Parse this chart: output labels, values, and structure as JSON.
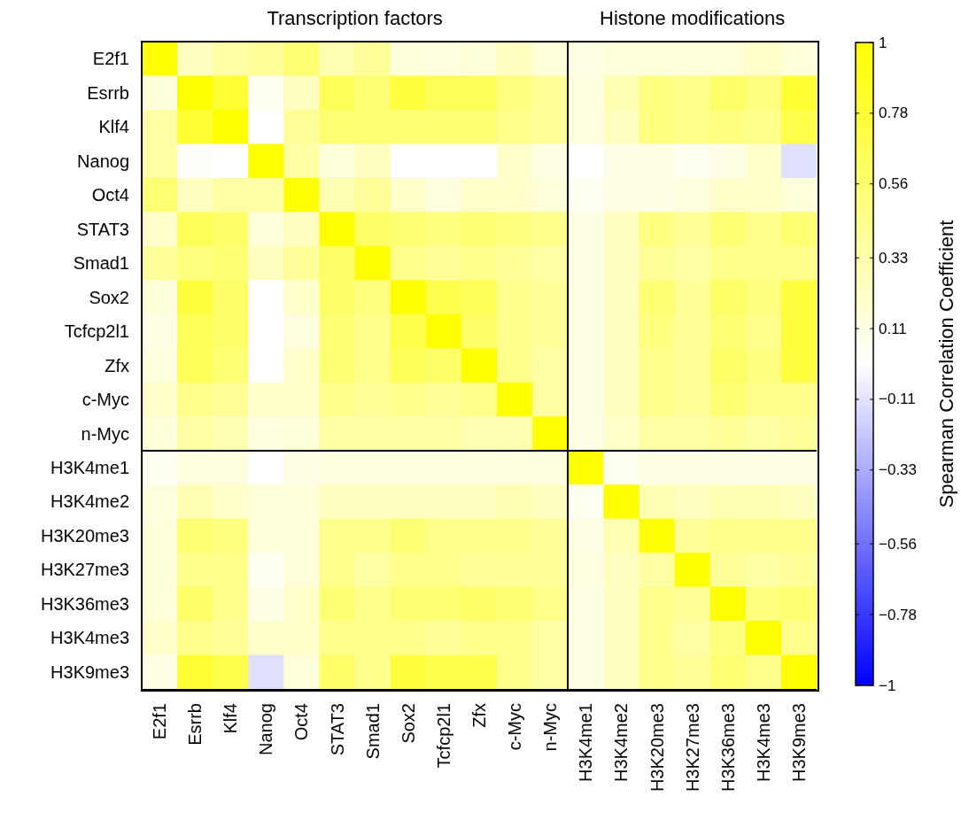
{
  "chart_data": {
    "type": "heatmap",
    "clabel": "Spearman Correlation Coefficient",
    "annotations": [
      "Transcription factors",
      "Histone modifications"
    ],
    "categories": [
      "E2f1",
      "Esrrb",
      "Klf4",
      "Nanog",
      "Oct4",
      "STAT3",
      "Smad1",
      "Sox2",
      "Tcfcp2l1",
      "Zfx",
      "c-Myc",
      "n-Myc",
      "H3K4me1",
      "H3K4me2",
      "H3K20me3",
      "H3K27me3",
      "H3K36me3",
      "H3K4me3",
      "H3K9me3"
    ],
    "y_categories": [
      "E2f1",
      "Esrrb",
      "Klf4",
      "Nanog",
      "Oct4",
      "STAT3",
      "Smad1",
      "Sox2",
      "Tcfcp2l1",
      "Zfx",
      "c-Myc",
      "n-Myc",
      "H3K4me1",
      "H3K4me2",
      "H3K20me3",
      "H3K27me3",
      "H3K36me3",
      "H3K4me3",
      "H3K9me3"
    ],
    "cells": [
      [
        1,
        0.25,
        0.35,
        0.4,
        0.55,
        0.3,
        0.4,
        0.15,
        0.12,
        0.15,
        0.25,
        0.15,
        0.1,
        0.15,
        0.15,
        0.15,
        0.15,
        0.2,
        0.15
      ],
      [
        0.15,
        1,
        0.8,
        0.05,
        0.25,
        0.65,
        0.55,
        0.75,
        0.65,
        0.65,
        0.5,
        0.4,
        0.12,
        0.3,
        0.5,
        0.45,
        0.6,
        0.5,
        0.8
      ],
      [
        0.35,
        0.8,
        1,
        0,
        0.4,
        0.55,
        0.55,
        0.55,
        0.55,
        0.55,
        0.45,
        0.4,
        0.12,
        0.25,
        0.5,
        0.45,
        0.5,
        0.45,
        0.7
      ],
      [
        0.35,
        0.02,
        0,
        1,
        0.35,
        0.15,
        0.25,
        0,
        0,
        0,
        0.2,
        0.1,
        0,
        0.1,
        0.1,
        0.05,
        0.1,
        0.2,
        -0.12
      ],
      [
        0.55,
        0.25,
        0.35,
        0.35,
        1,
        0.3,
        0.4,
        0.2,
        0.12,
        0.2,
        0.2,
        0.15,
        0.05,
        0.1,
        0.1,
        0.12,
        0.2,
        0.2,
        0.15
      ],
      [
        0.2,
        0.65,
        0.6,
        0.15,
        0.25,
        1,
        0.6,
        0.55,
        0.5,
        0.55,
        0.5,
        0.45,
        0.1,
        0.25,
        0.5,
        0.4,
        0.55,
        0.45,
        0.55
      ],
      [
        0.4,
        0.5,
        0.55,
        0.25,
        0.4,
        0.6,
        1,
        0.45,
        0.4,
        0.45,
        0.4,
        0.35,
        0.1,
        0.25,
        0.4,
        0.35,
        0.45,
        0.45,
        0.45
      ],
      [
        0.15,
        0.75,
        0.6,
        0,
        0.2,
        0.6,
        0.5,
        1,
        0.7,
        0.65,
        0.45,
        0.4,
        0.1,
        0.25,
        0.55,
        0.4,
        0.6,
        0.5,
        0.75
      ],
      [
        0.1,
        0.65,
        0.6,
        0,
        0.12,
        0.55,
        0.45,
        0.7,
        1,
        0.6,
        0.45,
        0.4,
        0.1,
        0.25,
        0.5,
        0.4,
        0.55,
        0.45,
        0.75
      ],
      [
        0.12,
        0.65,
        0.55,
        0,
        0.2,
        0.55,
        0.45,
        0.65,
        0.6,
        1,
        0.45,
        0.35,
        0.1,
        0.25,
        0.45,
        0.4,
        0.6,
        0.5,
        0.75
      ],
      [
        0.2,
        0.45,
        0.4,
        0.2,
        0.2,
        0.45,
        0.4,
        0.45,
        0.4,
        0.45,
        1,
        0.35,
        0.1,
        0.25,
        0.45,
        0.4,
        0.55,
        0.45,
        0.45
      ],
      [
        0.15,
        0.35,
        0.3,
        0.12,
        0.15,
        0.35,
        0.35,
        0.35,
        0.35,
        0.3,
        0.3,
        1,
        0.1,
        0.2,
        0.35,
        0.35,
        0.4,
        0.35,
        0.4
      ],
      [
        0.05,
        0.12,
        0.12,
        0,
        0.1,
        0.12,
        0.12,
        0.12,
        0.12,
        0.12,
        0.12,
        0.12,
        1,
        0.05,
        0.1,
        0.1,
        0.1,
        0.1,
        0.1
      ],
      [
        0.12,
        0.3,
        0.2,
        0.15,
        0.15,
        0.25,
        0.25,
        0.25,
        0.25,
        0.25,
        0.3,
        0.25,
        0.05,
        1,
        0.3,
        0.25,
        0.3,
        0.3,
        0.25
      ],
      [
        0.15,
        0.55,
        0.5,
        0.15,
        0.15,
        0.45,
        0.45,
        0.55,
        0.45,
        0.45,
        0.45,
        0.4,
        0.1,
        0.3,
        1,
        0.4,
        0.45,
        0.45,
        0.45
      ],
      [
        0.15,
        0.45,
        0.45,
        0.05,
        0.15,
        0.45,
        0.35,
        0.45,
        0.45,
        0.4,
        0.4,
        0.4,
        0.12,
        0.25,
        0.35,
        1,
        0.4,
        0.35,
        0.4
      ],
      [
        0.15,
        0.6,
        0.45,
        0.1,
        0.2,
        0.55,
        0.45,
        0.55,
        0.55,
        0.6,
        0.55,
        0.45,
        0.1,
        0.25,
        0.45,
        0.4,
        1,
        0.5,
        0.55
      ],
      [
        0.2,
        0.45,
        0.4,
        0.2,
        0.2,
        0.45,
        0.45,
        0.45,
        0.4,
        0.45,
        0.45,
        0.35,
        0.1,
        0.25,
        0.45,
        0.35,
        0.5,
        1,
        0.45
      ],
      [
        0.1,
        0.8,
        0.7,
        -0.12,
        0.15,
        0.6,
        0.45,
        0.75,
        0.7,
        0.7,
        0.45,
        0.35,
        0.1,
        0.25,
        0.45,
        0.4,
        0.55,
        0.45,
        1
      ]
    ],
    "clim": [
      -1,
      1
    ],
    "cticks": [
      -1,
      -0.78,
      -0.56,
      -0.33,
      -0.11,
      0.11,
      0.33,
      0.56,
      0.78,
      1
    ]
  }
}
